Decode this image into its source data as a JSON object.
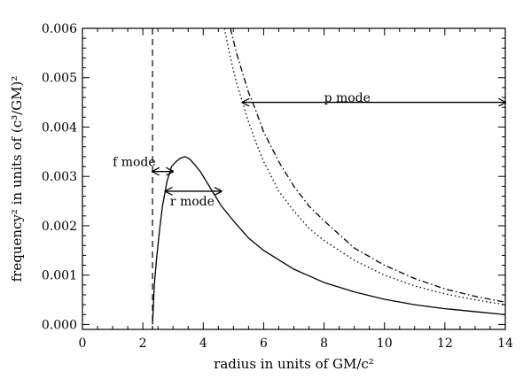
{
  "chart_data": {
    "type": "line",
    "xlabel": "radius in units of GM/c²",
    "ylabel": "frequency² in units of (c³/GM)²",
    "xlim": [
      0,
      14
    ],
    "ylim": [
      -0.0001,
      0.006
    ],
    "xticks": [
      "0",
      "2",
      "4",
      "6",
      "8",
      "10",
      "12",
      "14"
    ],
    "yticks": [
      "0.000",
      "0.001",
      "0.002",
      "0.003",
      "0.004",
      "0.005",
      "0.006"
    ],
    "grid": false,
    "series": [
      {
        "style": "solid",
        "x": [
          2.32,
          2.38,
          2.45,
          2.55,
          2.65,
          2.8,
          2.95,
          3.1,
          3.25,
          3.4,
          3.55,
          3.7,
          3.9,
          4.2,
          4.6,
          5.0,
          5.5,
          6.0,
          7.0,
          8.0,
          9.0,
          10.0,
          11.0,
          12.0,
          13.0,
          14.0
        ],
        "y": [
          0.0,
          0.0008,
          0.0013,
          0.0019,
          0.0024,
          0.0029,
          0.0032,
          0.0033,
          0.00337,
          0.0034,
          0.00335,
          0.00325,
          0.0031,
          0.0028,
          0.0024,
          0.0021,
          0.00175,
          0.0015,
          0.00112,
          0.00085,
          0.00066,
          0.00051,
          0.0004,
          0.00032,
          0.00026,
          0.0002
        ]
      },
      {
        "style": "dotted",
        "x": [
          4.7,
          4.9,
          5.1,
          5.3,
          5.5,
          5.8,
          6.0,
          6.5,
          7.0,
          7.5,
          8.0,
          9.0,
          10.0,
          11.0,
          12.0,
          13.0,
          14.0
        ],
        "y": [
          0.006,
          0.0054,
          0.0049,
          0.0045,
          0.0041,
          0.0036,
          0.0033,
          0.0027,
          0.0023,
          0.00195,
          0.0017,
          0.0013,
          0.001,
          0.00078,
          0.00062,
          0.0005,
          0.0004
        ]
      },
      {
        "style": "dash-dot",
        "x": [
          4.9,
          5.1,
          5.3,
          5.5,
          5.7,
          6.0,
          6.5,
          7.0,
          7.5,
          8.0,
          9.0,
          10.0,
          11.0,
          12.0,
          13.0,
          14.0
        ],
        "y": [
          0.006,
          0.0055,
          0.0051,
          0.0047,
          0.0044,
          0.0039,
          0.0033,
          0.0028,
          0.0024,
          0.0021,
          0.00155,
          0.0012,
          0.00093,
          0.00072,
          0.00057,
          0.00045
        ]
      }
    ],
    "vertical_line": {
      "x": 2.32,
      "style": "dashed"
    },
    "annotations": [
      {
        "text": "f mode",
        "arrow_x": [
          2.32,
          3.0
        ],
        "arrow_y": 0.0031,
        "label_x": 1.0,
        "label_y": 0.0033
      },
      {
        "text": "r mode",
        "arrow_x": [
          2.75,
          4.6
        ],
        "arrow_y": 0.0027,
        "label_x": 2.9,
        "label_y": 0.0025
      },
      {
        "text": "p mode",
        "arrow_x": [
          5.3,
          14.0
        ],
        "arrow_y": 0.0045,
        "label_x": 8.0,
        "label_y": 0.0046
      }
    ]
  }
}
